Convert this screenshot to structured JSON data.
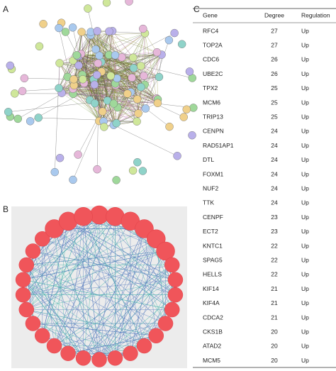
{
  "panels": {
    "a": "A",
    "b": "B",
    "c": "C"
  },
  "table": {
    "header": [
      "Gene",
      "Degree",
      "Regulation"
    ],
    "rows": [
      [
        "RFC4",
        27,
        "Up"
      ],
      [
        "TOP2A",
        27,
        "Up"
      ],
      [
        "CDC6",
        26,
        "Up"
      ],
      [
        "UBE2C",
        26,
        "Up"
      ],
      [
        "TPX2",
        25,
        "Up"
      ],
      [
        "MCM6",
        25,
        "Up"
      ],
      [
        "TRIP13",
        25,
        "Up"
      ],
      [
        "CENPN",
        24,
        "Up"
      ],
      [
        "RAD51AP1",
        24,
        "Up"
      ],
      [
        "DTL",
        24,
        "Up"
      ],
      [
        "FOXM1",
        24,
        "Up"
      ],
      [
        "NUF2",
        24,
        "Up"
      ],
      [
        "TTK",
        24,
        "Up"
      ],
      [
        "CENPF",
        23,
        "Up"
      ],
      [
        "ECT2",
        23,
        "Up"
      ],
      [
        "KNTC1",
        22,
        "Up"
      ],
      [
        "SPAG5",
        22,
        "Up"
      ],
      [
        "HELLS",
        22,
        "Up"
      ],
      [
        "KIF14",
        21,
        "Up"
      ],
      [
        "KIF4A",
        21,
        "Up"
      ],
      [
        "CDCA2",
        21,
        "Up"
      ],
      [
        "CKS1B",
        20,
        "Up"
      ],
      [
        "ATAD2",
        20,
        "Up"
      ],
      [
        "MCM5",
        20,
        "Up"
      ]
    ]
  }
}
